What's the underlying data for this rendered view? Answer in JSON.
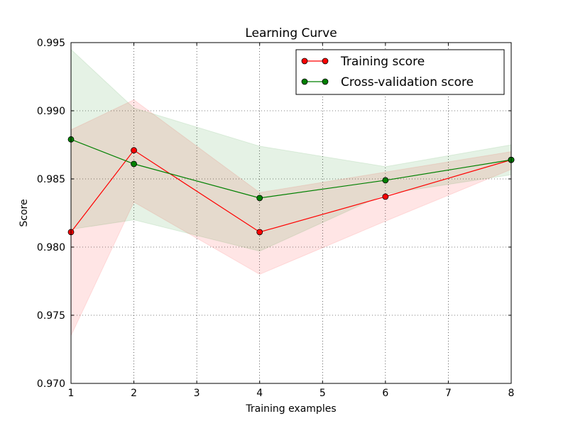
{
  "chart_data": {
    "type": "line",
    "title": "Learning Curve",
    "xlabel": "Training examples",
    "ylabel": "Score",
    "xlim": [
      1,
      8
    ],
    "ylim": [
      0.97,
      0.995
    ],
    "x_ticks": [
      1,
      2,
      3,
      4,
      5,
      6,
      7,
      8
    ],
    "x_tick_labels": [
      "1",
      "2",
      "3",
      "4",
      "5",
      "6",
      "7",
      "8"
    ],
    "y_ticks": [
      0.97,
      0.975,
      0.98,
      0.985,
      0.99,
      0.995
    ],
    "y_tick_labels": [
      "0.970",
      "0.975",
      "0.980",
      "0.985",
      "0.990",
      "0.995"
    ],
    "grid": true,
    "legend_position": "top-right",
    "x": [
      1,
      2,
      4,
      6,
      8
    ],
    "series": [
      {
        "name": "Training score",
        "color": "#ff0000",
        "band_color": "#ff0000",
        "values": [
          0.9811,
          0.9871,
          0.9811,
          0.9837,
          0.9864
        ],
        "upper": [
          0.9886,
          0.9908,
          0.984,
          0.9855,
          0.987
        ],
        "lower": [
          0.9735,
          0.9833,
          0.978,
          0.9819,
          0.9857
        ]
      },
      {
        "name": "Cross-validation score",
        "color": "#008000",
        "band_color": "#008000",
        "values": [
          0.9879,
          0.9861,
          0.9836,
          0.9849,
          0.9864
        ],
        "upper": [
          0.9945,
          0.9902,
          0.9874,
          0.9859,
          0.9875
        ],
        "lower": [
          0.9813,
          0.982,
          0.9797,
          0.9839,
          0.9853
        ]
      }
    ]
  }
}
